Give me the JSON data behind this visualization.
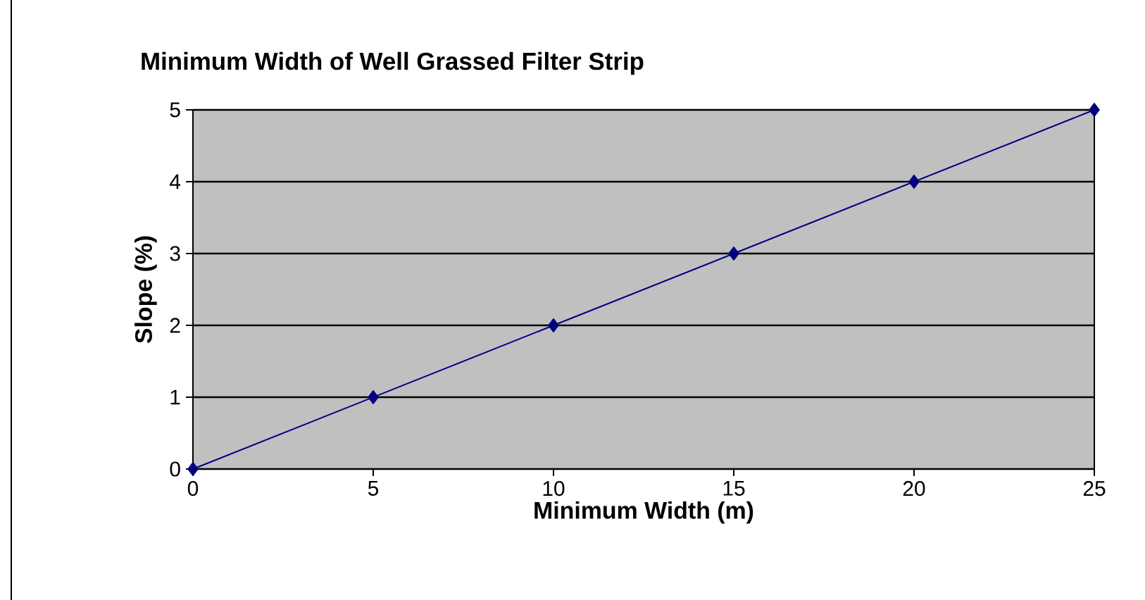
{
  "chart_data": {
    "type": "line",
    "title": "Minimum Width of Well Grassed Filter Strip",
    "xlabel": "Minimum Width (m)",
    "ylabel": "Slope (%)",
    "x": [
      0,
      5,
      10,
      15,
      20,
      25
    ],
    "series": [
      {
        "color": "#000080",
        "values": [
          0,
          1,
          2,
          3,
          4,
          5
        ]
      }
    ],
    "xlim": [
      0,
      25
    ],
    "ylim": [
      0,
      5
    ],
    "xticks": [
      0,
      5,
      10,
      15,
      20,
      25
    ],
    "yticks": [
      0,
      1,
      2,
      3,
      4,
      5
    ],
    "grid": "y",
    "marker": "diamond",
    "line_style": "solid"
  }
}
